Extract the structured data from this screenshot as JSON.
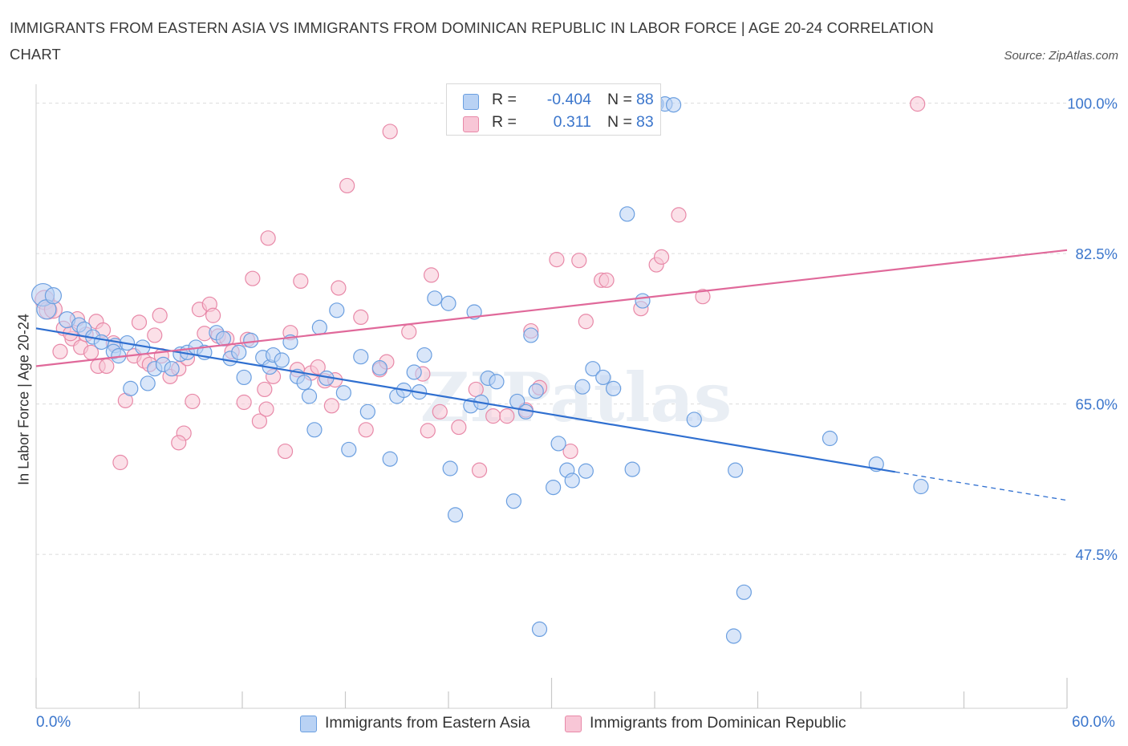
{
  "title": "IMMIGRANTS FROM EASTERN ASIA VS IMMIGRANTS FROM DOMINICAN REPUBLIC IN LABOR FORCE | AGE 20-24 CORRELATION CHART",
  "source": "Source: ZipAtlas.com",
  "watermark": "ZIPatlas",
  "colors": {
    "blue_fill": "#b9d2f4",
    "blue_stroke": "#6b9fe0",
    "blue_line": "#2f6fd0",
    "pink_fill": "#f8c6d6",
    "pink_stroke": "#e889a8",
    "pink_line": "#e0699a",
    "accent_text": "#3b76cc",
    "grid": "#dcdcdc"
  },
  "stats": {
    "blue": {
      "r_label": "R =",
      "r_value": "-0.404",
      "n_label": "N =",
      "n_value": "88"
    },
    "pink": {
      "r_label": "R =",
      "r_value": "0.311",
      "n_label": "N =",
      "n_value": "83"
    }
  },
  "legend": {
    "blue_label": "Immigrants from Eastern Asia",
    "pink_label": "Immigrants from Dominican Republic"
  },
  "x_axis": {
    "min_label": "0.0%",
    "max_label": "60.0%"
  },
  "chart_data": {
    "type": "scatter",
    "title": "IMMIGRANTS FROM EASTERN ASIA VS IMMIGRANTS FROM DOMINICAN REPUBLIC IN LABOR FORCE | AGE 20-24 CORRELATION CHART",
    "xlabel": "",
    "ylabel": "In Labor Force | Age 20-24",
    "xlim": [
      0,
      60
    ],
    "ylim": [
      29.6,
      102.2
    ],
    "y_ticks": [
      {
        "value": 100.0,
        "label": "100.0%"
      },
      {
        "value": 82.5,
        "label": "82.5%"
      },
      {
        "value": 65.0,
        "label": "65.0%"
      },
      {
        "value": 47.5,
        "label": "47.5%"
      }
    ],
    "x_tick_count": 11,
    "grid": true,
    "legend_position": "top-center",
    "series": [
      {
        "name": "Immigrants from Eastern Asia",
        "color": "#6b9fe0",
        "trend": {
          "x0": 0,
          "y0": 73.8,
          "x1": 50,
          "y1": 57.1,
          "dash_to_x": 60,
          "dash_to_y": 53.8
        },
        "points": [
          [
            0.4,
            77.7,
            14
          ],
          [
            0.6,
            76.0,
            12
          ],
          [
            1.0,
            77.6,
            10
          ],
          [
            1.8,
            74.8,
            10
          ],
          [
            2.5,
            74.2,
            9
          ],
          [
            2.8,
            73.7,
            9
          ],
          [
            3.3,
            72.8,
            9
          ],
          [
            3.8,
            72.2,
            9
          ],
          [
            4.6,
            71.8,
            9
          ],
          [
            4.5,
            71.1,
            9
          ],
          [
            4.8,
            70.6,
            9
          ],
          [
            5.3,
            72.1,
            9
          ],
          [
            5.5,
            66.8,
            9
          ],
          [
            6.2,
            71.6,
            9
          ],
          [
            6.5,
            67.4,
            9
          ],
          [
            6.9,
            69.1,
            9
          ],
          [
            7.4,
            69.6,
            9
          ],
          [
            7.9,
            69.1,
            9
          ],
          [
            8.4,
            70.8,
            9
          ],
          [
            8.8,
            71.0,
            9
          ],
          [
            9.3,
            71.6,
            9
          ],
          [
            9.8,
            71.0,
            9
          ],
          [
            10.5,
            73.3,
            9
          ],
          [
            10.9,
            72.6,
            9
          ],
          [
            11.3,
            70.3,
            9
          ],
          [
            11.8,
            71.0,
            9
          ],
          [
            12.1,
            68.1,
            9
          ],
          [
            12.5,
            72.4,
            9
          ],
          [
            13.2,
            70.4,
            9
          ],
          [
            13.6,
            69.3,
            9
          ],
          [
            13.8,
            70.7,
            9
          ],
          [
            14.3,
            70.1,
            9
          ],
          [
            14.8,
            72.2,
            9
          ],
          [
            15.2,
            68.2,
            9
          ],
          [
            15.6,
            67.5,
            9
          ],
          [
            15.9,
            65.9,
            9
          ],
          [
            16.2,
            62.0,
            9
          ],
          [
            16.5,
            73.9,
            9
          ],
          [
            16.9,
            68.0,
            9
          ],
          [
            17.5,
            75.9,
            9
          ],
          [
            17.9,
            66.3,
            9
          ],
          [
            18.2,
            59.7,
            9
          ],
          [
            18.9,
            70.5,
            9
          ],
          [
            19.3,
            64.1,
            9
          ],
          [
            20.0,
            69.2,
            9
          ],
          [
            20.6,
            58.6,
            9
          ],
          [
            21.0,
            65.9,
            9
          ],
          [
            21.4,
            66.6,
            9
          ],
          [
            22.0,
            68.7,
            9
          ],
          [
            22.3,
            66.4,
            9
          ],
          [
            22.6,
            70.7,
            9
          ],
          [
            23.2,
            77.3,
            9
          ],
          [
            24.0,
            76.7,
            9
          ],
          [
            24.1,
            57.5,
            9
          ],
          [
            24.4,
            52.1,
            9
          ],
          [
            25.3,
            64.8,
            9
          ],
          [
            25.5,
            75.7,
            9
          ],
          [
            25.9,
            65.2,
            9
          ],
          [
            26.3,
            68.0,
            9
          ],
          [
            26.8,
            67.6,
            9
          ],
          [
            27.8,
            53.7,
            9
          ],
          [
            28.0,
            65.3,
            9
          ],
          [
            28.5,
            64.1,
            9
          ],
          [
            28.8,
            73.0,
            9
          ],
          [
            29.1,
            66.5,
            9
          ],
          [
            30.1,
            55.3,
            9
          ],
          [
            30.4,
            60.4,
            9
          ],
          [
            30.9,
            57.3,
            9
          ],
          [
            31.2,
            56.1,
            9
          ],
          [
            31.8,
            67.0,
            9
          ],
          [
            32.0,
            57.2,
            9
          ],
          [
            32.4,
            69.1,
            9
          ],
          [
            33.0,
            68.1,
            9
          ],
          [
            33.6,
            66.8,
            9
          ],
          [
            34.4,
            87.1,
            9
          ],
          [
            34.7,
            57.4,
            9
          ],
          [
            35.3,
            77.0,
            9
          ],
          [
            36.1,
            99.9,
            9
          ],
          [
            36.0,
            99.9,
            9
          ],
          [
            36.6,
            99.9,
            9
          ],
          [
            37.1,
            99.8,
            9
          ],
          [
            38.3,
            63.2,
            9
          ],
          [
            40.7,
            57.3,
            9
          ],
          [
            41.2,
            43.1,
            9
          ],
          [
            40.6,
            38.0,
            9
          ],
          [
            46.2,
            61.0,
            9
          ],
          [
            48.9,
            58.0,
            9
          ],
          [
            51.5,
            55.4,
            9
          ],
          [
            29.3,
            38.8,
            9
          ]
        ]
      },
      {
        "name": "Immigrants from Dominican Republic",
        "color": "#e889a8",
        "trend": {
          "x0": 0,
          "y0": 69.4,
          "x1": 60,
          "y1": 82.9
        },
        "points": [
          [
            0.5,
            77.1,
            12
          ],
          [
            0.7,
            75.9,
            11
          ],
          [
            1.0,
            76.0,
            11
          ],
          [
            1.6,
            73.8,
            9
          ],
          [
            2.1,
            72.6,
            9
          ],
          [
            2.4,
            74.9,
            9
          ],
          [
            2.6,
            71.6,
            9
          ],
          [
            1.4,
            71.1,
            9
          ],
          [
            2.0,
            73.2,
            9
          ],
          [
            2.9,
            73.1,
            9
          ],
          [
            3.2,
            71.0,
            9
          ],
          [
            3.5,
            74.6,
            9
          ],
          [
            3.6,
            69.4,
            9
          ],
          [
            3.9,
            73.6,
            9
          ],
          [
            4.1,
            69.4,
            9
          ],
          [
            4.5,
            72.1,
            9
          ],
          [
            4.9,
            58.2,
            9
          ],
          [
            5.2,
            65.4,
            9
          ],
          [
            5.7,
            70.6,
            9
          ],
          [
            6.0,
            74.5,
            9
          ],
          [
            6.3,
            70.0,
            9
          ],
          [
            6.6,
            69.6,
            9
          ],
          [
            6.9,
            73.0,
            9
          ],
          [
            7.2,
            75.3,
            9
          ],
          [
            7.3,
            70.6,
            9
          ],
          [
            7.8,
            68.2,
            9
          ],
          [
            8.3,
            69.1,
            9
          ],
          [
            8.6,
            61.6,
            9
          ],
          [
            8.3,
            60.5,
            9
          ],
          [
            8.8,
            70.3,
            9
          ],
          [
            9.1,
            65.3,
            9
          ],
          [
            9.5,
            76.0,
            9
          ],
          [
            9.8,
            73.2,
            9
          ],
          [
            10.1,
            76.6,
            9
          ],
          [
            10.3,
            75.3,
            9
          ],
          [
            10.6,
            72.9,
            9
          ],
          [
            11.1,
            72.6,
            9
          ],
          [
            11.4,
            71.1,
            9
          ],
          [
            12.1,
            65.2,
            9
          ],
          [
            12.3,
            72.5,
            9
          ],
          [
            12.6,
            79.6,
            9
          ],
          [
            13.0,
            63.0,
            9
          ],
          [
            13.4,
            64.4,
            9
          ],
          [
            13.3,
            66.7,
            9
          ],
          [
            13.5,
            84.3,
            9
          ],
          [
            13.8,
            68.2,
            9
          ],
          [
            14.5,
            59.5,
            9
          ],
          [
            14.8,
            73.3,
            9
          ],
          [
            15.4,
            79.3,
            9
          ],
          [
            15.2,
            69.0,
            9
          ],
          [
            16.0,
            68.6,
            9
          ],
          [
            16.4,
            69.3,
            9
          ],
          [
            16.8,
            67.7,
            9
          ],
          [
            17.2,
            64.8,
            9
          ],
          [
            17.4,
            67.8,
            9
          ],
          [
            17.6,
            78.5,
            9
          ],
          [
            18.1,
            90.4,
            9
          ],
          [
            18.9,
            75.1,
            9
          ],
          [
            19.2,
            62.0,
            9
          ],
          [
            20.0,
            69.0,
            9
          ],
          [
            20.4,
            69.9,
            9
          ],
          [
            20.6,
            96.7,
            9
          ],
          [
            21.7,
            73.4,
            9
          ],
          [
            22.5,
            68.5,
            9
          ],
          [
            23.0,
            80.0,
            9
          ],
          [
            22.8,
            61.9,
            9
          ],
          [
            23.5,
            64.1,
            9
          ],
          [
            24.6,
            62.3,
            9
          ],
          [
            25.8,
            57.3,
            9
          ],
          [
            25.6,
            66.7,
            9
          ],
          [
            26.6,
            63.6,
            9
          ],
          [
            27.4,
            63.6,
            9
          ],
          [
            28.5,
            64.3,
            9
          ],
          [
            28.8,
            73.5,
            9
          ],
          [
            29.3,
            66.9,
            9
          ],
          [
            30.3,
            81.8,
            9
          ],
          [
            31.1,
            59.5,
            9
          ],
          [
            32.0,
            74.6,
            9
          ],
          [
            31.6,
            81.7,
            9
          ],
          [
            32.9,
            79.4,
            9
          ],
          [
            33.2,
            79.4,
            9
          ],
          [
            35.2,
            76.1,
            9
          ],
          [
            36.1,
            81.2,
            9
          ],
          [
            36.4,
            82.1,
            9
          ],
          [
            37.4,
            87.0,
            9
          ],
          [
            38.8,
            77.5,
            9
          ],
          [
            51.3,
            99.9,
            9
          ]
        ]
      }
    ]
  }
}
